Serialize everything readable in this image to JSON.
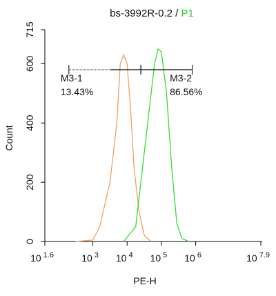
{
  "chart_data": {
    "type": "histogram-line",
    "title": "bs-3992R-0.2 /",
    "title_gate": "P1",
    "title_gate_color": "#33cc33",
    "xlabel": "PE-H",
    "ylabel": "Count",
    "xscale": "log",
    "xlim": [
      39.81,
      79432823
    ],
    "ylim": [
      0,
      715
    ],
    "yticks": [
      0,
      200,
      400,
      600,
      715
    ],
    "xticks": [
      {
        "value": 39.81,
        "label": "10",
        "exponent": "1.6"
      },
      {
        "value": 1000,
        "label": "10",
        "exponent": "3"
      },
      {
        "value": 10000,
        "label": "10",
        "exponent": "4"
      },
      {
        "value": 100000,
        "label": "10",
        "exponent": "5"
      },
      {
        "value": 1000000,
        "label": "10",
        "exponent": "6"
      },
      {
        "value": 79432823,
        "label": "10",
        "exponent": "7.9"
      }
    ],
    "series": [
      {
        "color": "#f0a060",
        "x": [
          316,
          1000,
          1585,
          3162,
          5012,
          6310,
          7943,
          10000,
          12589,
          15849,
          22387,
          31623,
          50119
        ],
        "values": [
          0,
          5,
          50,
          200,
          400,
          600,
          630,
          600,
          450,
          250,
          100,
          20,
          0
        ]
      },
      {
        "color": "#33dd33",
        "x": [
          7943,
          17783,
          28184,
          44668,
          63096,
          79433,
          100000,
          141254,
          199526,
          281838,
          398107,
          630957
        ],
        "values": [
          0,
          50,
          250,
          450,
          600,
          650,
          640,
          500,
          250,
          60,
          10,
          0
        ]
      }
    ],
    "gates": [
      {
        "name": "M3-1",
        "range": [
          200,
          25119
        ],
        "label": "13.43%"
      },
      {
        "name": "M3-2",
        "range": [
          25119,
          794328
        ],
        "label": "86.56%"
      }
    ]
  }
}
